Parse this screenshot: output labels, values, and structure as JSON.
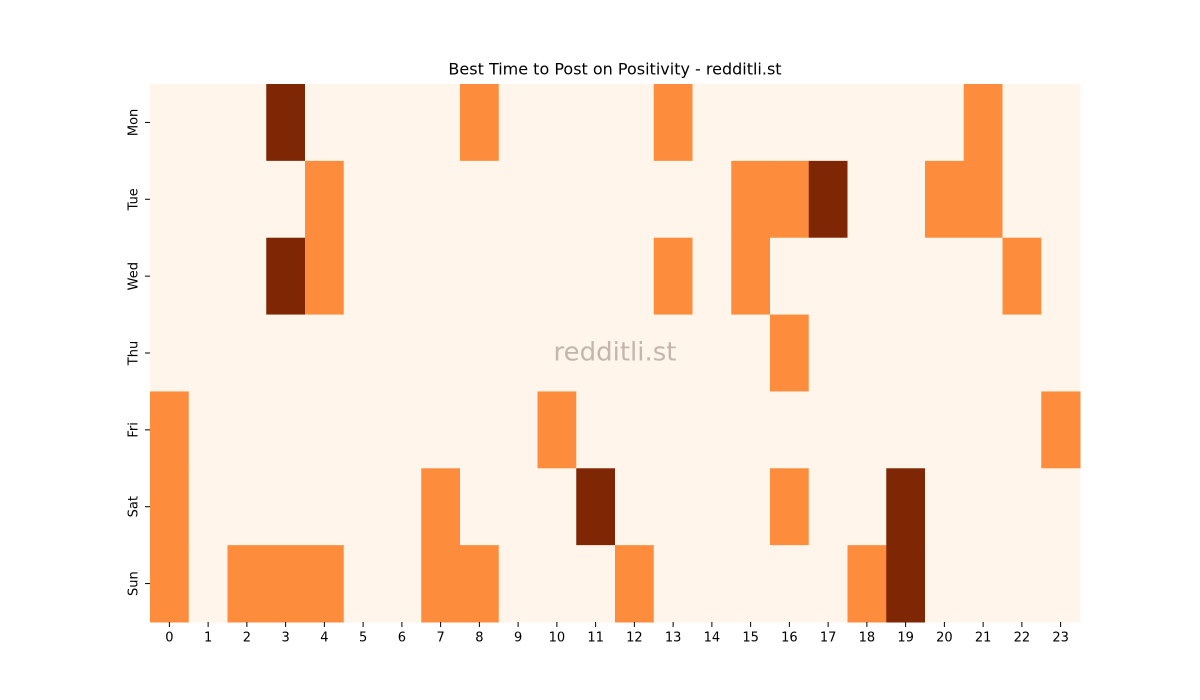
{
  "chart_data": {
    "type": "heatmap",
    "title": "Best Time to Post on Positivity - redditli.st",
    "watermark": "redditli.st",
    "x": [
      0,
      1,
      2,
      3,
      4,
      5,
      6,
      7,
      8,
      9,
      10,
      11,
      12,
      13,
      14,
      15,
      16,
      17,
      18,
      19,
      20,
      21,
      22,
      23
    ],
    "y": [
      "Mon",
      "Tue",
      "Wed",
      "Thu",
      "Fri",
      "Sat",
      "Sun"
    ],
    "values": [
      [
        0,
        0,
        0,
        2,
        0,
        0,
        0,
        0,
        1,
        0,
        0,
        0,
        0,
        1,
        0,
        0,
        0,
        0,
        0,
        0,
        0,
        1,
        0,
        0
      ],
      [
        0,
        0,
        0,
        0,
        1,
        0,
        0,
        0,
        0,
        0,
        0,
        0,
        0,
        0,
        0,
        1,
        1,
        2,
        0,
        0,
        1,
        1,
        0,
        0
      ],
      [
        0,
        0,
        0,
        2,
        1,
        0,
        0,
        0,
        0,
        0,
        0,
        0,
        0,
        1,
        0,
        1,
        0,
        0,
        0,
        0,
        0,
        0,
        1,
        0
      ],
      [
        0,
        0,
        0,
        0,
        0,
        0,
        0,
        0,
        0,
        0,
        0,
        0,
        0,
        0,
        0,
        0,
        1,
        0,
        0,
        0,
        0,
        0,
        0,
        0
      ],
      [
        1,
        0,
        0,
        0,
        0,
        0,
        0,
        0,
        0,
        0,
        1,
        0,
        0,
        0,
        0,
        0,
        0,
        0,
        0,
        0,
        0,
        0,
        0,
        1
      ],
      [
        1,
        0,
        0,
        0,
        0,
        0,
        0,
        1,
        0,
        0,
        0,
        2,
        0,
        0,
        0,
        0,
        1,
        0,
        0,
        2,
        0,
        0,
        0,
        0
      ],
      [
        1,
        0,
        1,
        1,
        1,
        0,
        0,
        1,
        1,
        0,
        0,
        0,
        1,
        0,
        0,
        0,
        0,
        0,
        1,
        2,
        0,
        0,
        0,
        0
      ]
    ],
    "colors": [
      "#fff5eb",
      "#fd8d3c",
      "#7f2704"
    ]
  }
}
